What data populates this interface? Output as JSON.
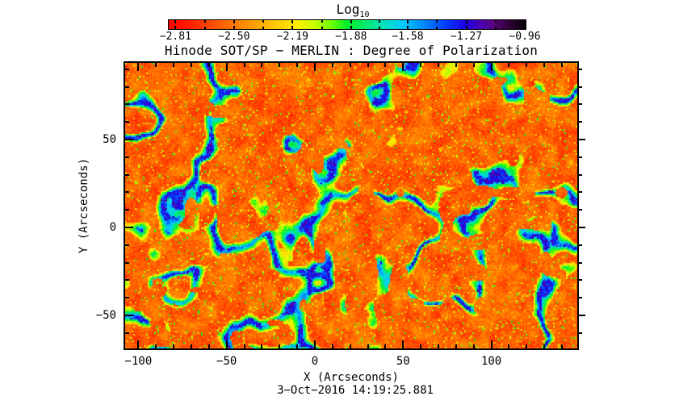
{
  "title": "Hinode SOT/SP − MERLIN : Degree of Polarization",
  "colorbar": {
    "label": "Log",
    "label_sub": "10",
    "tick_labels": [
      "−2.81",
      "−2.50",
      "−2.19",
      "−1.88",
      "−1.58",
      "−1.27",
      "−0.96"
    ]
  },
  "axes": {
    "x_label": "X (Arcseconds)",
    "y_label": "Y (Arcseconds)",
    "x_tick_labels": [
      "−100",
      "−50",
      "0",
      "50",
      "100"
    ],
    "y_tick_labels": [
      "50",
      "0",
      "−50"
    ]
  },
  "footer_timestamp": "3−Oct−2016 14:19:25.881",
  "chart_data": {
    "type": "heatmap",
    "title": "Hinode SOT/SP − MERLIN : Degree of Polarization",
    "timestamp": "3-Oct-2016 14:19:25.881",
    "xlabel": "X (Arcseconds)",
    "ylabel": "Y (Arcseconds)",
    "xlim": [
      -108,
      150
    ],
    "ylim": [
      -70,
      94
    ],
    "x_ticks": [
      -100,
      -50,
      0,
      50,
      100
    ],
    "y_ticks": [
      50,
      0,
      -50
    ],
    "minor_tick_step": 10,
    "grid": false,
    "colorbar": {
      "label": "Log10",
      "position": "top",
      "range": [
        -2.85,
        -0.96
      ],
      "tick_values": [
        -2.81,
        -2.5,
        -2.19,
        -1.88,
        -1.58,
        -1.27,
        -0.96
      ],
      "gradient_stops": [
        [
          0.0,
          "#ff0000"
        ],
        [
          0.06,
          "#ff1e00"
        ],
        [
          0.14,
          "#ff5a00"
        ],
        [
          0.22,
          "#ff9100"
        ],
        [
          0.3,
          "#ffc800"
        ],
        [
          0.36,
          "#ffee00"
        ],
        [
          0.41,
          "#c8ff00"
        ],
        [
          0.46,
          "#64ff00"
        ],
        [
          0.5,
          "#00f02d"
        ],
        [
          0.56,
          "#00e878"
        ],
        [
          0.61,
          "#00e0c8"
        ],
        [
          0.66,
          "#00c8ff"
        ],
        [
          0.72,
          "#0082ff"
        ],
        [
          0.78,
          "#0037ff"
        ],
        [
          0.83,
          "#1e00e6"
        ],
        [
          0.875,
          "#4b00b4"
        ],
        [
          0.91,
          "#5a007d"
        ],
        [
          0.95,
          "#32003c"
        ],
        [
          1.0,
          "#050005"
        ]
      ],
      "field_appearance": "granular orange/red background with scattered yellow-green speckles and connected blue/dark-blue network lanes fringed in green"
    }
  }
}
